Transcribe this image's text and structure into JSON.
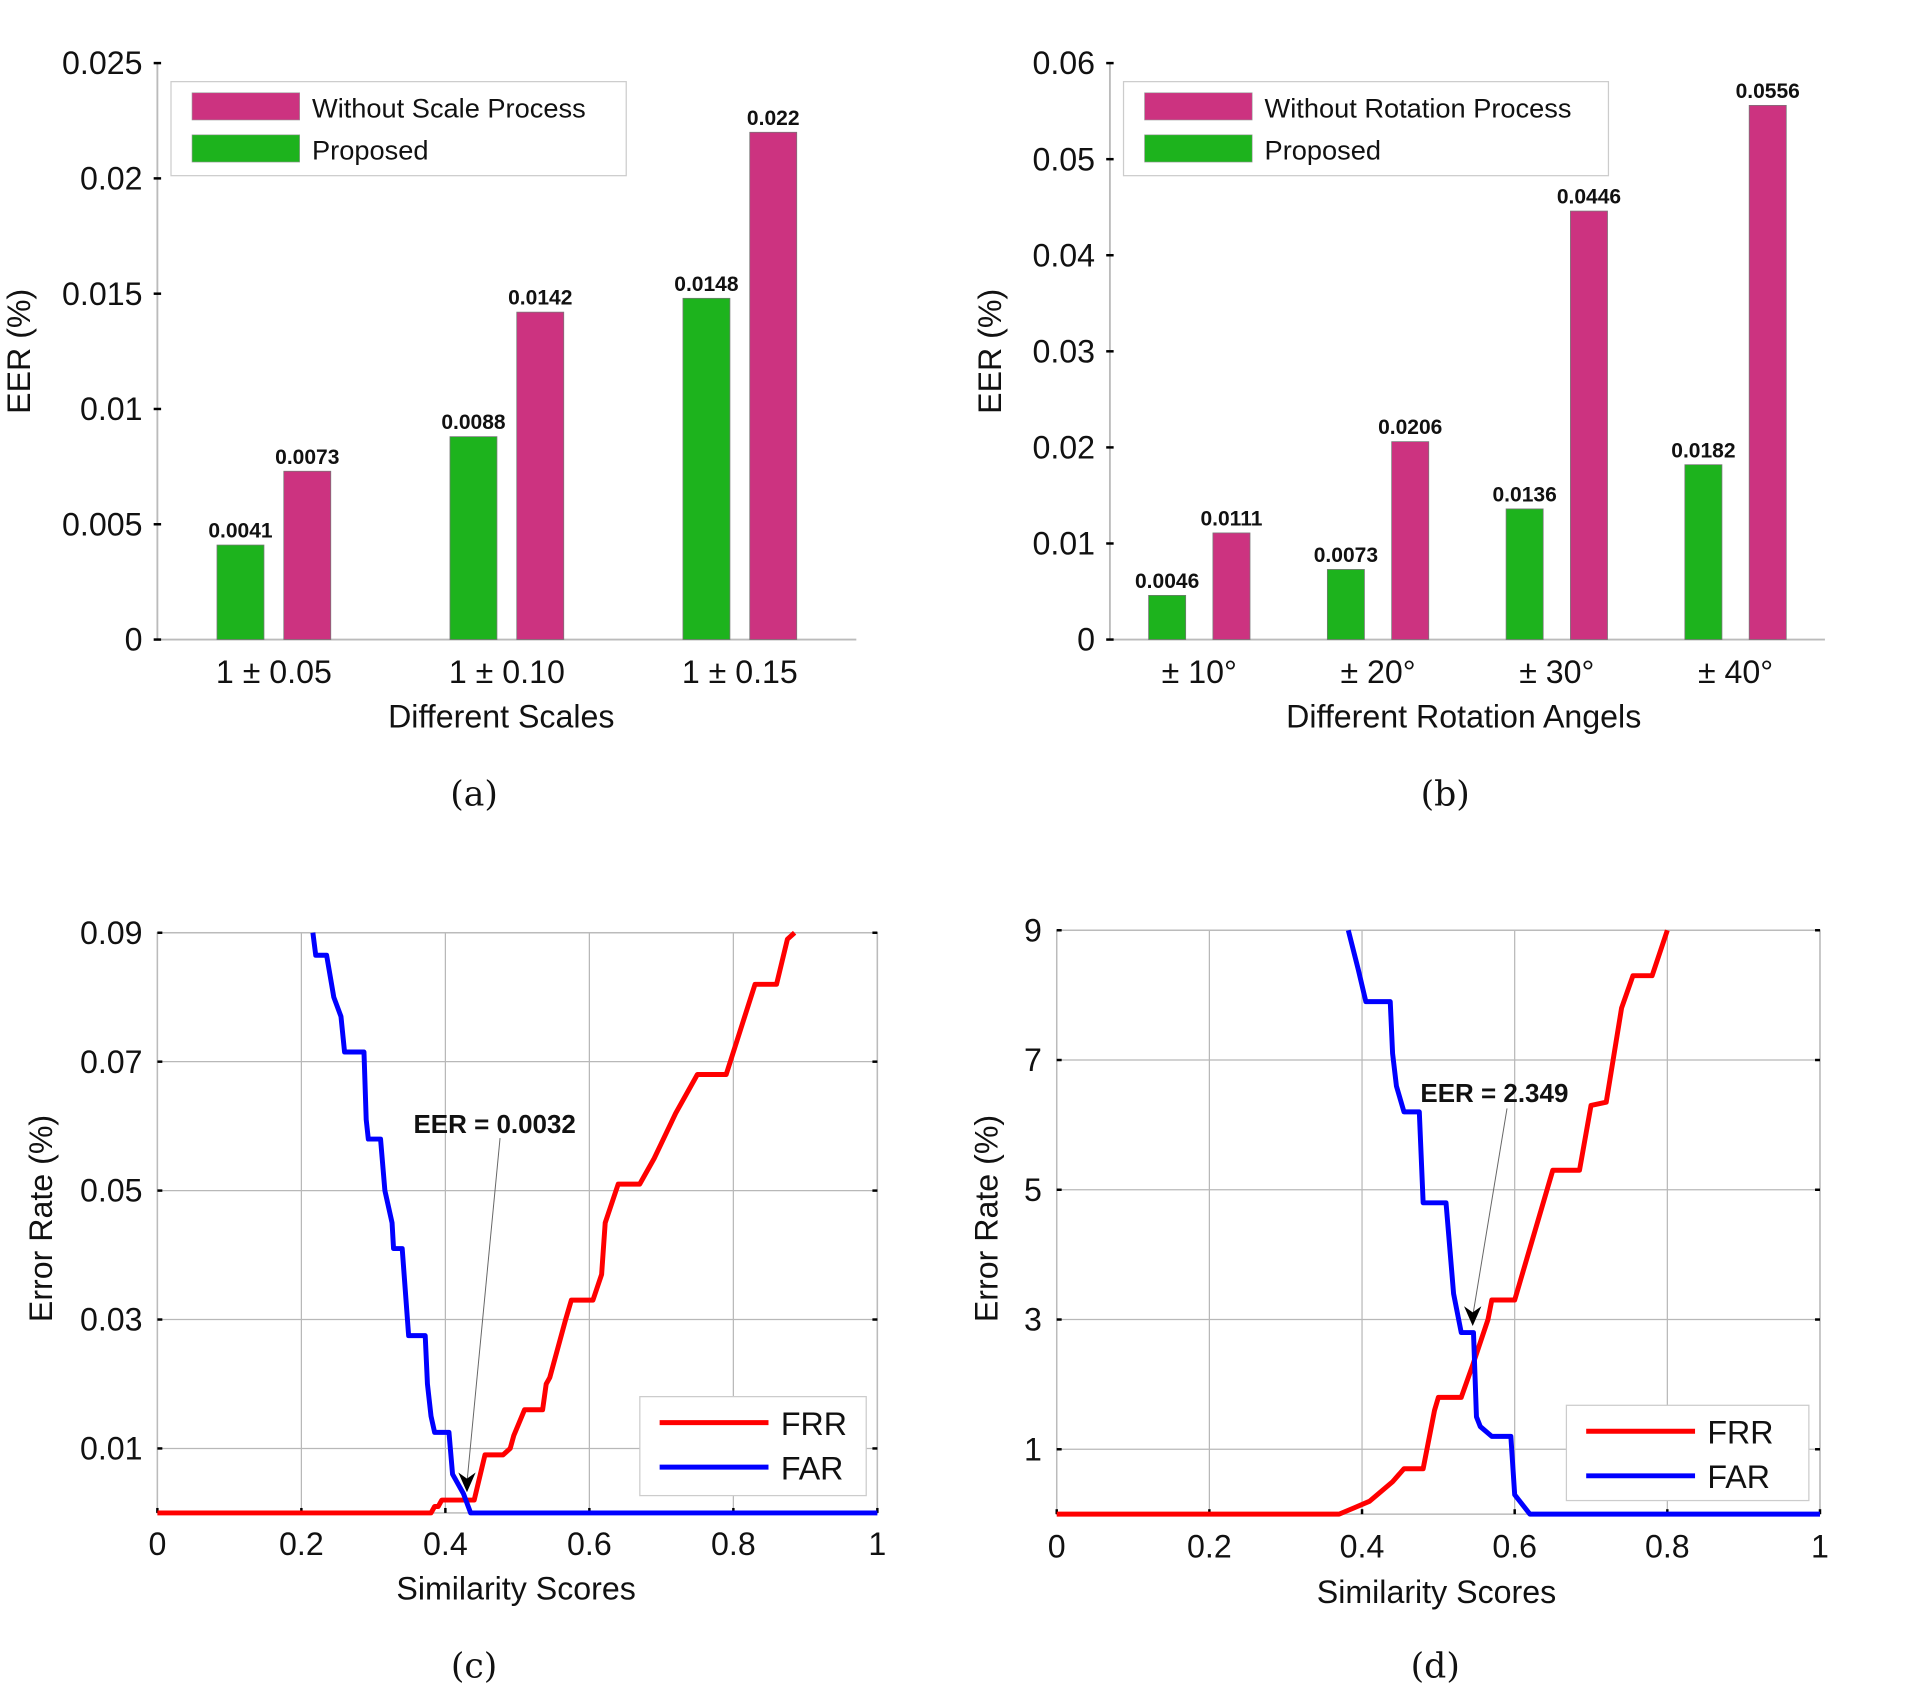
{
  "colors": {
    "without": "#cc3380",
    "proposed": "#1db31d",
    "frr": "#ff0000",
    "far": "#0000ff",
    "grid": "#b8b8b8"
  },
  "chart_data": [
    {
      "id": "a",
      "type": "bar",
      "caption": "(a)",
      "title": "",
      "xlabel": "Different Scales",
      "ylabel": "EER (%)",
      "categories": [
        "1 ± 0.05",
        "1 ± 0.10",
        "1 ± 0.15"
      ],
      "ylim": [
        0,
        0.025
      ],
      "yticks": [
        0,
        0.005,
        0.01,
        0.015,
        0.02,
        0.025
      ],
      "ytick_labels": [
        "0",
        "0.005",
        "0.01",
        "0.015",
        "0.02",
        "0.025"
      ],
      "grid": false,
      "legend_position": "top-left",
      "series": [
        {
          "name": "Proposed",
          "values": [
            0.0041,
            0.0088,
            0.0148
          ],
          "labels": [
            "0.0041",
            "0.0088",
            "0.0148"
          ]
        },
        {
          "name": "Without Scale Process",
          "values": [
            0.0073,
            0.0142,
            0.022
          ],
          "labels": [
            "0.0073",
            "0.0142",
            "0.022"
          ]
        }
      ],
      "legend": [
        "Without Scale Process",
        "Proposed"
      ]
    },
    {
      "id": "b",
      "type": "bar",
      "caption": "(b)",
      "title": "",
      "xlabel": "Different Rotation Angels",
      "ylabel": "EER (%)",
      "categories": [
        "± 10°",
        "± 20°",
        "± 30°",
        "± 40°"
      ],
      "ylim": [
        0,
        0.06
      ],
      "yticks": [
        0,
        0.01,
        0.02,
        0.03,
        0.04,
        0.05,
        0.06
      ],
      "ytick_labels": [
        "0",
        "0.01",
        "0.02",
        "0.03",
        "0.04",
        "0.05",
        "0.06"
      ],
      "grid": false,
      "legend_position": "top-left",
      "series": [
        {
          "name": "Proposed",
          "values": [
            0.0046,
            0.0073,
            0.0136,
            0.0182
          ],
          "labels": [
            "0.0046",
            "0.0073",
            "0.0136",
            "0.0182"
          ]
        },
        {
          "name": "Without Rotation Process",
          "values": [
            0.0111,
            0.0206,
            0.0446,
            0.0556
          ],
          "labels": [
            "0.0111",
            "0.0206",
            "0.0446",
            "0.0556"
          ]
        }
      ],
      "legend": [
        "Without Rotation Process",
        "Proposed"
      ]
    },
    {
      "id": "c",
      "type": "line",
      "caption": "(c)",
      "xlabel": "Similarity Scores",
      "ylabel": "Error Rate (%)",
      "xlim": [
        0,
        1
      ],
      "ylim": [
        0,
        0.09
      ],
      "xticks": [
        0,
        0.2,
        0.4,
        0.6,
        0.8,
        1
      ],
      "xtick_labels": [
        "0",
        "0.2",
        "0.4",
        "0.6",
        "0.8",
        "1"
      ],
      "yticks": [
        0.01,
        0.03,
        0.05,
        0.07,
        0.09
      ],
      "ytick_labels": [
        "0.01",
        "0.03",
        "0.05",
        "0.07",
        "0.09"
      ],
      "grid": true,
      "legend_position": "bottom-right",
      "annotation": {
        "text": "EER = 0.0032",
        "x": 0.43,
        "y": 0.0032
      },
      "series": [
        {
          "name": "FRR",
          "x": [
            0,
            0.38,
            0.385,
            0.39,
            0.395,
            0.44,
            0.455,
            0.48,
            0.49,
            0.495,
            0.51,
            0.535,
            0.54,
            0.545,
            0.567,
            0.575,
            0.605,
            0.617,
            0.622,
            0.64,
            0.67,
            0.69,
            0.72,
            0.75,
            0.79,
            0.83,
            0.86,
            0.875,
            0.885
          ],
          "y": [
            0,
            0,
            0.001,
            0.001,
            0.002,
            0.002,
            0.009,
            0.009,
            0.01,
            0.012,
            0.016,
            0.016,
            0.02,
            0.021,
            0.03,
            0.033,
            0.033,
            0.037,
            0.045,
            0.051,
            0.051,
            0.055,
            0.062,
            0.068,
            0.068,
            0.082,
            0.082,
            0.089,
            0.09
          ]
        },
        {
          "name": "FAR",
          "x": [
            0.216,
            0.22,
            0.235,
            0.245,
            0.255,
            0.26,
            0.287,
            0.29,
            0.293,
            0.31,
            0.316,
            0.326,
            0.328,
            0.34,
            0.349,
            0.372,
            0.375,
            0.38,
            0.385,
            0.405,
            0.41,
            0.425,
            0.435,
            1
          ],
          "y": [
            0.09,
            0.0865,
            0.0865,
            0.08,
            0.077,
            0.0715,
            0.0715,
            0.061,
            0.058,
            0.058,
            0.05,
            0.045,
            0.041,
            0.041,
            0.0275,
            0.0275,
            0.02,
            0.015,
            0.0125,
            0.0125,
            0.006,
            0.003,
            0,
            0
          ]
        }
      ],
      "legend": [
        "FRR",
        "FAR"
      ]
    },
    {
      "id": "d",
      "type": "line",
      "caption": "(d)",
      "xlabel": "Similarity Scores",
      "ylabel": "Error Rate (%)",
      "xlim": [
        0,
        1
      ],
      "ylim": [
        0,
        9
      ],
      "xticks": [
        0,
        0.2,
        0.4,
        0.6,
        0.8,
        1
      ],
      "xtick_labels": [
        "0",
        "0.2",
        "0.4",
        "0.6",
        "0.8",
        "1"
      ],
      "yticks": [
        1,
        3,
        5,
        7,
        9
      ],
      "ytick_labels": [
        "1",
        "3",
        "5",
        "7",
        "9"
      ],
      "grid": true,
      "legend_position": "bottom-right",
      "annotation": {
        "text": "EER = 2.349",
        "x": 0.545,
        "y": 2.9
      },
      "series": [
        {
          "name": "FRR",
          "x": [
            0,
            0.37,
            0.39,
            0.41,
            0.42,
            0.44,
            0.455,
            0.48,
            0.495,
            0.5,
            0.53,
            0.545,
            0.565,
            0.57,
            0.6,
            0.65,
            0.685,
            0.7,
            0.72,
            0.74,
            0.755,
            0.78,
            0.8
          ],
          "y": [
            0,
            0,
            0.1,
            0.2,
            0.3,
            0.5,
            0.7,
            0.7,
            1.6,
            1.8,
            1.8,
            2.3,
            3.0,
            3.3,
            3.3,
            5.3,
            5.3,
            6.3,
            6.35,
            7.8,
            8.3,
            8.3,
            9
          ]
        },
        {
          "name": "FAR",
          "x": [
            0.382,
            0.395,
            0.405,
            0.437,
            0.44,
            0.445,
            0.455,
            0.475,
            0.48,
            0.51,
            0.52,
            0.53,
            0.546,
            0.55,
            0.555,
            0.57,
            0.595,
            0.6,
            0.62,
            1
          ],
          "y": [
            9,
            8.4,
            7.9,
            7.9,
            7.1,
            6.6,
            6.2,
            6.2,
            4.8,
            4.8,
            3.4,
            2.8,
            2.8,
            1.5,
            1.35,
            1.2,
            1.2,
            0.3,
            0,
            0
          ]
        }
      ],
      "legend": [
        "FRR",
        "FAR"
      ]
    }
  ]
}
